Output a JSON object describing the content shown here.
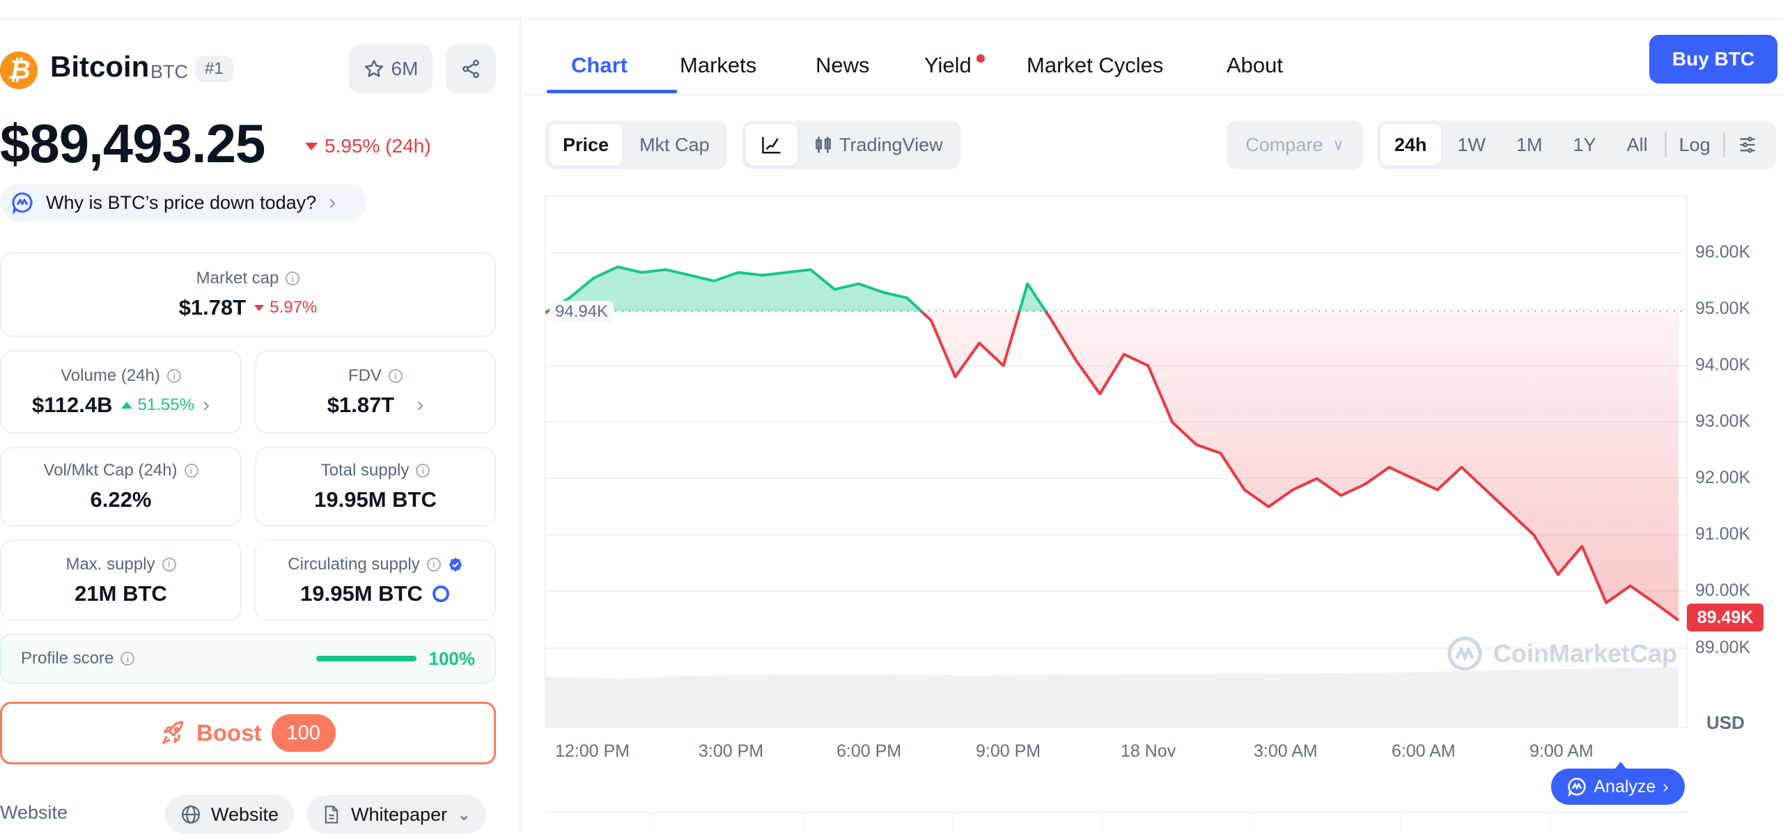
{
  "coin": {
    "name": "Bitcoin",
    "symbol": "BTC",
    "rank": "#1",
    "watchlist_count": "6M",
    "price": "$89,493.25",
    "price_change": "5.95% (24h)",
    "why_prompt": "Why is BTC’s price down today?"
  },
  "stats": {
    "market_cap": {
      "label": "Market cap",
      "value": "$1.78T",
      "change": "5.97%"
    },
    "volume": {
      "label": "Volume (24h)",
      "value": "$112.4B",
      "change": "51.55%"
    },
    "fdv": {
      "label": "FDV",
      "value": "$1.87T"
    },
    "vol_mkt_cap": {
      "label": "Vol/Mkt Cap (24h)",
      "value": "6.22%"
    },
    "total_supply": {
      "label": "Total supply",
      "value": "19.95M BTC"
    },
    "max_supply": {
      "label": "Max. supply",
      "value": "21M BTC"
    },
    "circulating_supply": {
      "label": "Circulating supply",
      "value": "19.95M BTC"
    }
  },
  "profile": {
    "label": "Profile score",
    "value": "100%"
  },
  "boost": {
    "label": "Boost",
    "count": "100"
  },
  "links": {
    "row_label": "Website",
    "website": "Website",
    "whitepaper": "Whitepaper"
  },
  "tabs": [
    {
      "label": "Chart"
    },
    {
      "label": "Markets"
    },
    {
      "label": "News"
    },
    {
      "label": "Yield"
    },
    {
      "label": "Market Cycles"
    },
    {
      "label": "About"
    }
  ],
  "buy_button": "Buy BTC",
  "controls": {
    "type_toggle": [
      "Price",
      "Mkt Cap"
    ],
    "tradingview": "TradingView",
    "compare": "Compare",
    "ranges": [
      "24h",
      "1W",
      "1M",
      "1Y",
      "All"
    ],
    "log": "Log"
  },
  "chart": {
    "open_label": "94.94K",
    "current_label": "89.49K",
    "currency": "USD",
    "watermark": "CoinMarketCap",
    "analyze": "Analyze"
  },
  "colors": {
    "accent": "#3861fb",
    "up": "#16c784",
    "down": "#ea3943",
    "boost": "#fa7a5f",
    "bitcoin": "#f7931a"
  },
  "chart_data": {
    "type": "line",
    "title": "Bitcoin Price (24h)",
    "xlabel": "",
    "ylabel": "USD",
    "x_ticks": [
      "12:00 PM",
      "3:00 PM",
      "6:00 PM",
      "9:00 PM",
      "18 Nov",
      "3:00 AM",
      "6:00 AM",
      "9:00 AM"
    ],
    "y_ticks": [
      "96.00K",
      "95.00K",
      "94.00K",
      "93.00K",
      "92.00K",
      "91.00K",
      "90.00K",
      "89.00K"
    ],
    "ylim": [
      88600,
      97200
    ],
    "baseline": 94940,
    "last": 89490,
    "grid": true,
    "x": [
      "11:00",
      "11:30",
      "12:00",
      "12:30",
      "13:00",
      "13:30",
      "14:00",
      "14:30",
      "15:00",
      "15:30",
      "16:00",
      "16:30",
      "17:00",
      "17:30",
      "18:00",
      "18:30",
      "19:00",
      "19:30",
      "20:00",
      "20:30",
      "21:00",
      "21:30",
      "22:00",
      "22:30",
      "23:00",
      "23:30",
      "00:00",
      "00:30",
      "01:00",
      "01:30",
      "02:00",
      "02:30",
      "03:00",
      "03:30",
      "04:00",
      "04:30",
      "05:00",
      "05:30",
      "06:00",
      "06:30",
      "07:00",
      "07:30",
      "08:00",
      "08:30",
      "09:00",
      "09:30",
      "10:00",
      "10:30"
    ],
    "values": [
      94940,
      95200,
      95550,
      95750,
      95650,
      95700,
      95600,
      95500,
      95650,
      95600,
      95650,
      95700,
      95350,
      95450,
      95300,
      95200,
      94800,
      93800,
      94400,
      94000,
      95450,
      94800,
      94100,
      93500,
      94200,
      94000,
      93000,
      92600,
      92450,
      91800,
      91500,
      91800,
      92000,
      91700,
      91900,
      92200,
      92000,
      91800,
      92200,
      91800,
      91400,
      91000,
      90300,
      90800,
      89800,
      90100,
      89800,
      89490
    ]
  }
}
